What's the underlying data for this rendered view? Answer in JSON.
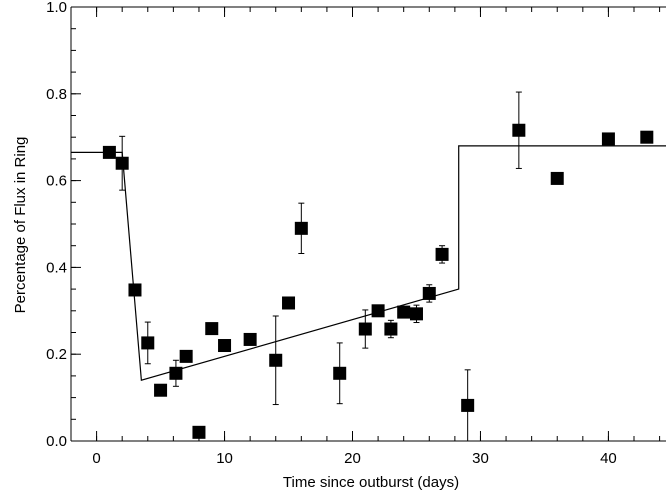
{
  "chart_data": {
    "type": "scatter",
    "xlabel": "Time since outburst (days)",
    "ylabel": "Percentage of Flux in Ring",
    "xlim": [
      -2,
      44.5
    ],
    "ylim": [
      0.0,
      1.0
    ],
    "xticks": [
      0,
      10,
      20,
      30,
      40
    ],
    "yticks": [
      0.0,
      0.2,
      0.4,
      0.6,
      0.8,
      1.0
    ],
    "xtick_labels": [
      "0",
      "10",
      "20",
      "30",
      "40"
    ],
    "ytick_labels": [
      "0.0",
      "0.2",
      "0.4",
      "0.6",
      "0.8",
      "1.0"
    ],
    "x_minor_step": 2,
    "y_minor_step": 0.05,
    "grid": false,
    "points": [
      {
        "x": 1.0,
        "y": 0.665,
        "err": 0.012
      },
      {
        "x": 2.0,
        "y": 0.64,
        "err": 0.062
      },
      {
        "x": 3.0,
        "y": 0.348,
        "err": 0.01
      },
      {
        "x": 4.0,
        "y": 0.226,
        "err": 0.048
      },
      {
        "x": 5.0,
        "y": 0.117,
        "err": 0.01
      },
      {
        "x": 6.2,
        "y": 0.156,
        "err": 0.03
      },
      {
        "x": 7.0,
        "y": 0.195,
        "err": 0.01
      },
      {
        "x": 8.0,
        "y": 0.02,
        "err": 0.008
      },
      {
        "x": 9.0,
        "y": 0.259,
        "err": 0.012
      },
      {
        "x": 10.0,
        "y": 0.22,
        "err": 0.01
      },
      {
        "x": 12.0,
        "y": 0.234,
        "err": 0.01
      },
      {
        "x": 14.0,
        "y": 0.186,
        "err": 0.102
      },
      {
        "x": 15.0,
        "y": 0.318,
        "err": 0.01
      },
      {
        "x": 16.0,
        "y": 0.49,
        "err": 0.058
      },
      {
        "x": 19.0,
        "y": 0.156,
        "err": 0.07
      },
      {
        "x": 21.0,
        "y": 0.258,
        "err": 0.044
      },
      {
        "x": 22.0,
        "y": 0.3,
        "err": 0.01
      },
      {
        "x": 23.0,
        "y": 0.258,
        "err": 0.02
      },
      {
        "x": 24.0,
        "y": 0.297,
        "err": 0.012
      },
      {
        "x": 25.0,
        "y": 0.293,
        "err": 0.02
      },
      {
        "x": 26.0,
        "y": 0.34,
        "err": 0.02
      },
      {
        "x": 27.0,
        "y": 0.43,
        "err": 0.02
      },
      {
        "x": 29.0,
        "y": 0.082,
        "err": 0.082
      },
      {
        "x": 33.0,
        "y": 0.716,
        "err": 0.088
      },
      {
        "x": 36.0,
        "y": 0.605,
        "err": 0.01
      },
      {
        "x": 40.0,
        "y": 0.696,
        "err": 0.01
      },
      {
        "x": 43.0,
        "y": 0.7,
        "err": 0.01
      }
    ],
    "model_line": [
      {
        "x": -2.0,
        "y": 0.665
      },
      {
        "x": 2.0,
        "y": 0.665
      },
      {
        "x": 3.5,
        "y": 0.14
      },
      {
        "x": 28.3,
        "y": 0.35
      },
      {
        "x": 28.3,
        "y": 0.68
      },
      {
        "x": 44.5,
        "y": 0.68
      }
    ]
  }
}
